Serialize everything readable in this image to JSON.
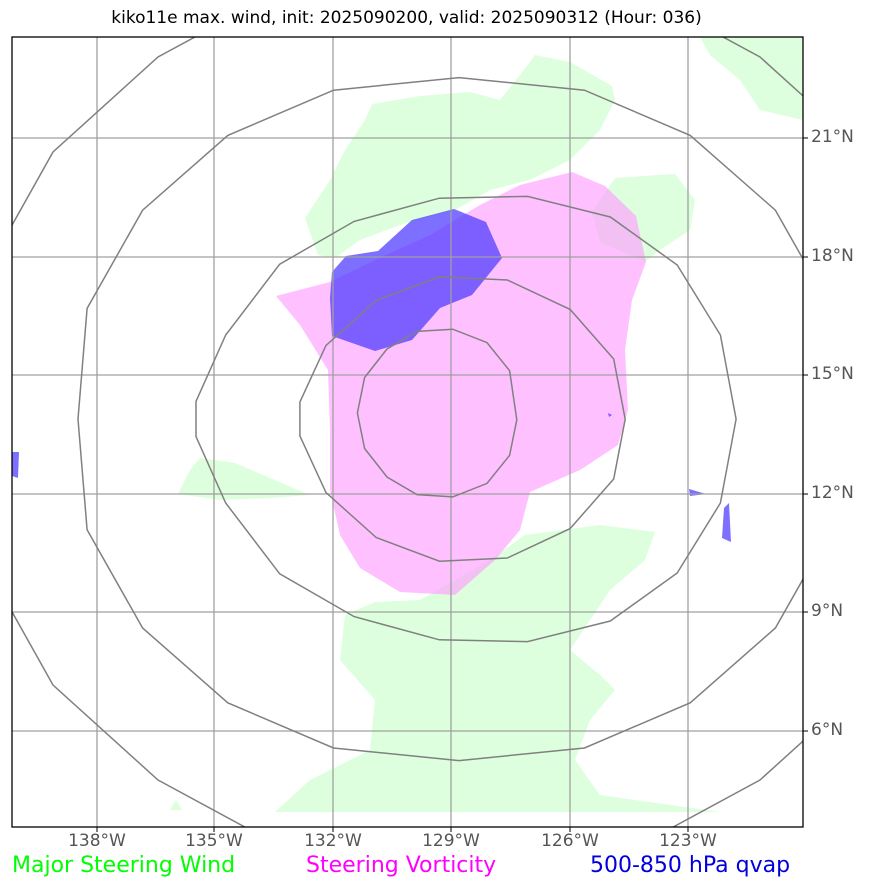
{
  "title": "kiko11e max. wind, init: 2025090200, valid: 2025090312 (Hour: 036)",
  "longitude_labels": [
    "138°W",
    "135°W",
    "132°W",
    "129°W",
    "126°W",
    "123°W"
  ],
  "latitude_labels": [
    "21°N",
    "18°N",
    "15°N",
    "12°N",
    "9°N",
    "6°N"
  ],
  "legend": {
    "wind": {
      "label": "Major Steering Wind",
      "color": "#00ff00"
    },
    "vorticity": {
      "label": "Steering Vorticity",
      "color": "#ff00ff"
    },
    "qvap": {
      "label": "500-850 hPa qvap",
      "color": "#0000dd"
    }
  },
  "layer_colors": {
    "wind_fill": "#ddffdd",
    "vorticity_fill": "#ffc0ff",
    "qvap_fill": "#5a5aff",
    "grid": "#a0a0a0",
    "range_rings": "#808080"
  }
}
